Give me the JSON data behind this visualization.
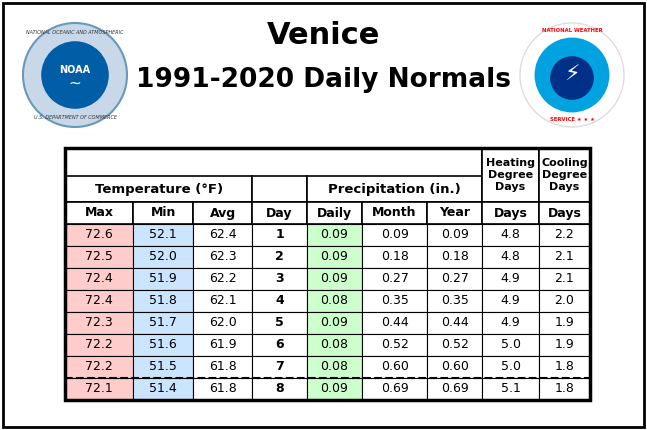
{
  "title_line1": "Venice",
  "title_line2": "1991-2020 Daily Normals",
  "rows": [
    [
      72.6,
      52.1,
      62.4,
      1,
      0.09,
      0.09,
      0.09,
      4.8,
      2.2
    ],
    [
      72.5,
      52.0,
      62.3,
      2,
      0.09,
      0.18,
      0.18,
      4.8,
      2.1
    ],
    [
      72.4,
      51.9,
      62.2,
      3,
      0.09,
      0.27,
      0.27,
      4.9,
      2.1
    ],
    [
      72.4,
      51.8,
      62.1,
      4,
      0.08,
      0.35,
      0.35,
      4.9,
      2.0
    ],
    [
      72.3,
      51.7,
      62.0,
      5,
      0.09,
      0.44,
      0.44,
      4.9,
      1.9
    ],
    [
      72.2,
      51.6,
      61.9,
      6,
      0.08,
      0.52,
      0.52,
      5.0,
      1.9
    ],
    [
      72.2,
      51.5,
      61.8,
      7,
      0.08,
      0.6,
      0.6,
      5.0,
      1.8
    ],
    [
      72.1,
      51.4,
      61.8,
      8,
      0.09,
      0.69,
      0.69,
      5.1,
      1.8
    ]
  ],
  "max_color": "#ffcccc",
  "min_color": "#cce5ff",
  "daily_precip_color": "#ccffcc",
  "background_color": "#ffffff",
  "fig_border_color": "#000000",
  "table_border_color": "#000000",
  "noaa_blue": "#005da6",
  "noaa_light_blue": "#4db8ff",
  "nws_blue": "#003087",
  "nws_light_blue": "#00a3e0",
  "nws_red": "#ff0000"
}
